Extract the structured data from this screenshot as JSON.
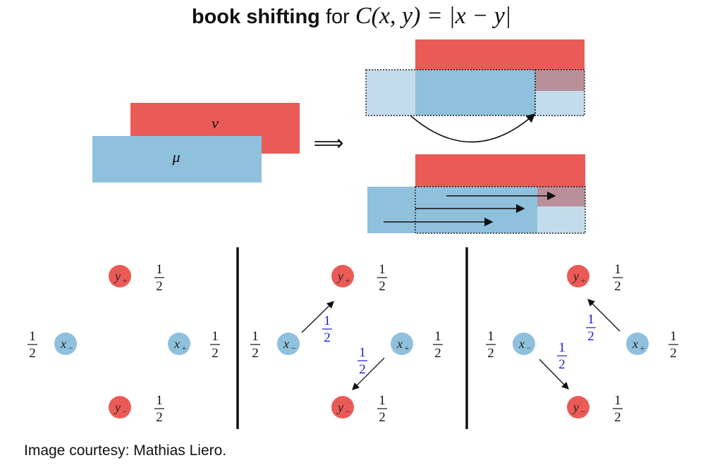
{
  "title": {
    "bold": "book shifting",
    "text": "for",
    "formula": "C(x, y) = |x − y|"
  },
  "caption": "Image courtesy: Mathias Liero.",
  "colors": {
    "red": "#ea5b57",
    "blue": "#8fc0dc",
    "light_blue": "#c3dcec",
    "overlap": "#b9909a",
    "blue_label": "#1a1adb"
  },
  "top": {
    "nu_label": "ν",
    "mu_label": "μ",
    "implies": "⟹"
  },
  "nodes": {
    "y_plus": "y",
    "y_plus_sub": "+",
    "y_minus": "y",
    "y_minus_sub": "−",
    "x_plus": "x",
    "x_plus_sub": "+",
    "x_minus": "x",
    "x_minus_sub": "−"
  },
  "fraction": {
    "num": "1",
    "den": "2"
  }
}
